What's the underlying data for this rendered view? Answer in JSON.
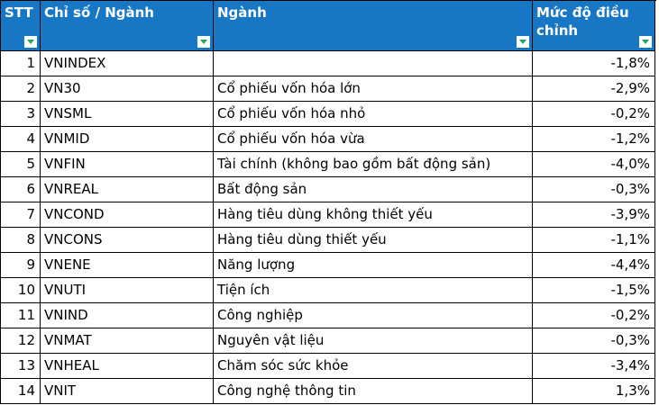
{
  "table": {
    "columns": [
      {
        "key": "stt",
        "label": "STT"
      },
      {
        "key": "code",
        "label": "Chỉ số / Ngành"
      },
      {
        "key": "sector",
        "label": "Ngành"
      },
      {
        "key": "adjustment",
        "label": "Mức độ điều chỉnh"
      }
    ],
    "rows": [
      {
        "stt": "1",
        "code": "VNINDEX",
        "sector": "",
        "adjustment": "-1,8%"
      },
      {
        "stt": "2",
        "code": "VN30",
        "sector": "Cổ phiếu vốn hóa lớn",
        "adjustment": "-2,9%"
      },
      {
        "stt": "3",
        "code": "VNSML",
        "sector": "Cổ phiếu vốn hóa nhỏ",
        "adjustment": "-0,2%"
      },
      {
        "stt": "4",
        "code": "VNMID",
        "sector": "Cổ phiếu vốn hóa vừa",
        "adjustment": "-1,2%"
      },
      {
        "stt": "5",
        "code": "VNFIN",
        "sector": "Tài chính (không bao gồm bất động sản)",
        "adjustment": "-4,0%"
      },
      {
        "stt": "6",
        "code": "VNREAL",
        "sector": "Bất động sản",
        "adjustment": "-0,3%"
      },
      {
        "stt": "7",
        "code": "VNCOND",
        "sector": "Hàng tiêu dùng không thiết yếu",
        "adjustment": "-3,9%"
      },
      {
        "stt": "8",
        "code": "VNCONS",
        "sector": "Hàng tiêu dùng thiết yếu",
        "adjustment": "-1,1%"
      },
      {
        "stt": "9",
        "code": "VNENE",
        "sector": "Năng lượng",
        "adjustment": "-4,4%"
      },
      {
        "stt": "10",
        "code": "VNUTI",
        "sector": "Tiện ích",
        "adjustment": "-1,5%"
      },
      {
        "stt": "11",
        "code": "VNIND",
        "sector": "Công nghiệp",
        "adjustment": "-0,2%"
      },
      {
        "stt": "12",
        "code": "VNMAT",
        "sector": "Nguyên vật liệu",
        "adjustment": "-0,3%"
      },
      {
        "stt": "13",
        "code": "VNHEAL",
        "sector": "Chăm sóc sức khỏe",
        "adjustment": "-3,4%"
      },
      {
        "stt": "14",
        "code": "VNIT",
        "sector": "Công nghệ thông tin",
        "adjustment": "1,3%"
      }
    ]
  },
  "icons": {
    "filter_dropdown": "filter-dropdown-arrow"
  },
  "colors": {
    "header_bg": "#1877C5",
    "header_text": "#FFFFFF",
    "filter_arrow_green": "#21A366",
    "grid_line": "#000000",
    "cell_bg": "#FFFFFF",
    "cell_text": "#000000"
  }
}
